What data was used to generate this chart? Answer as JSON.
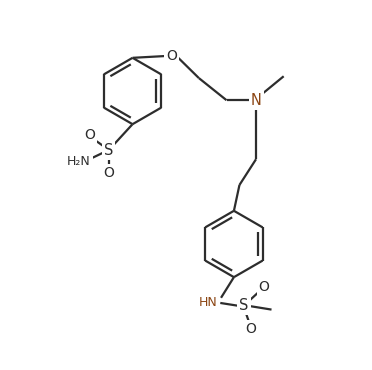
{
  "bg_color": "#ffffff",
  "bond_color": "#2d2d2d",
  "atom_color": "#2d2d2d",
  "n_color": "#8B4513",
  "lw": 1.6,
  "fs": 9.5,
  "xlim": [
    0,
    10
  ],
  "ylim": [
    0,
    10
  ],
  "figsize": [
    3.72,
    3.7
  ],
  "dpi": 100
}
